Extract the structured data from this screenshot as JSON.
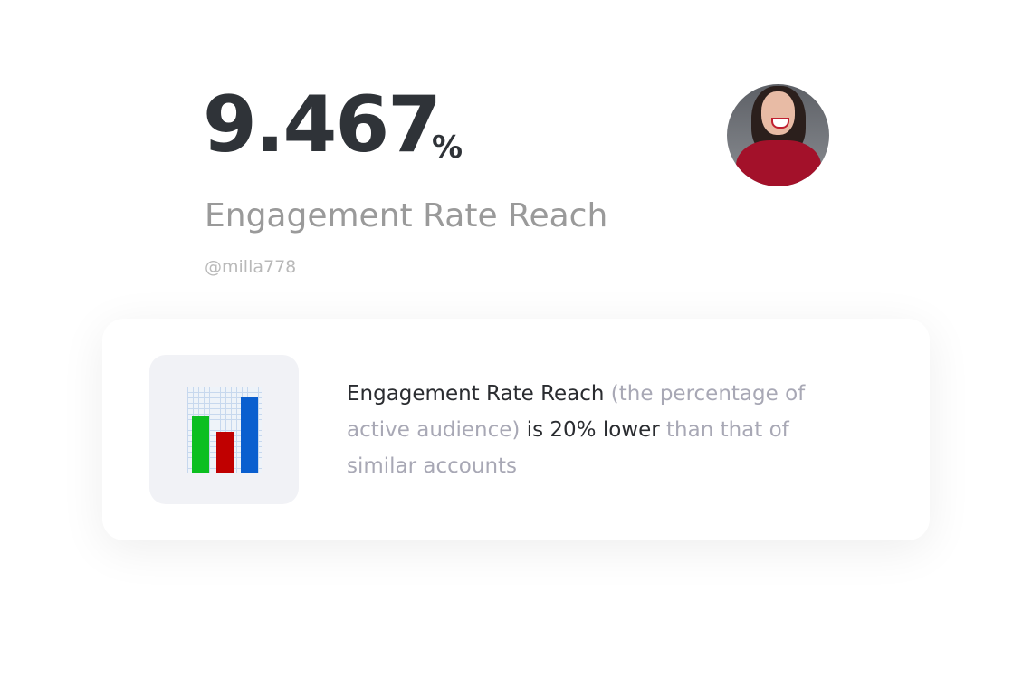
{
  "metric": {
    "value": "9.467",
    "unit": "%",
    "label": "Engagement Rate Reach",
    "handle": "@milla778"
  },
  "avatar": {
    "alt": "profile photo"
  },
  "insight": {
    "icon": "bar-chart-icon",
    "parts": [
      "Engagement Rate Reach",
      " (the percentage of active audience) ",
      "is 20% lower",
      " than that of similar accounts"
    ],
    "icon_bars": [
      {
        "color": "#0cbf20",
        "level": 0.65
      },
      {
        "color": "#c00000",
        "level": 0.47
      },
      {
        "color": "#0a5fcf",
        "level": 0.88
      }
    ]
  }
}
